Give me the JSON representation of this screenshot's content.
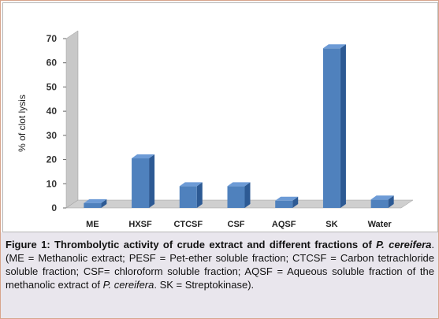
{
  "chart_data": {
    "type": "bar",
    "style": "3d-column",
    "categories": [
      "ME",
      "HXSF",
      "CTCSF",
      "CSF",
      "AQSF",
      "SK",
      "Water"
    ],
    "values": [
      2,
      20.5,
      9,
      9,
      3,
      66,
      3.5
    ],
    "ylabel": "% of clot lysis",
    "xlabel": "",
    "ylim": [
      0,
      70
    ],
    "yticks": [
      0,
      10,
      20,
      30,
      40,
      50,
      60,
      70
    ],
    "grid": false,
    "legend": "none",
    "colors": {
      "bar_front": "#4f81bd",
      "bar_side": "#2d5a94",
      "bar_top": "#6d9bd6",
      "wall": "#c8c8c8",
      "floor": "#cfcfcf"
    }
  },
  "caption": {
    "lead_bold": "Figure 1: Thrombolytic activity of crude extract and different fractions of ",
    "species_1": "P. cereifera",
    "mid_1": ". (ME = Methanolic extract; PESF = Pet-ether soluble fraction; CTCSF = Carbon tetrachloride soluble fraction; CSF= chloroform soluble fraction; AQSF = Aqueous soluble fraction of the methanolic extract of ",
    "species_2": "P. cereifera",
    "tail": ". SK = Streptokinase)."
  }
}
